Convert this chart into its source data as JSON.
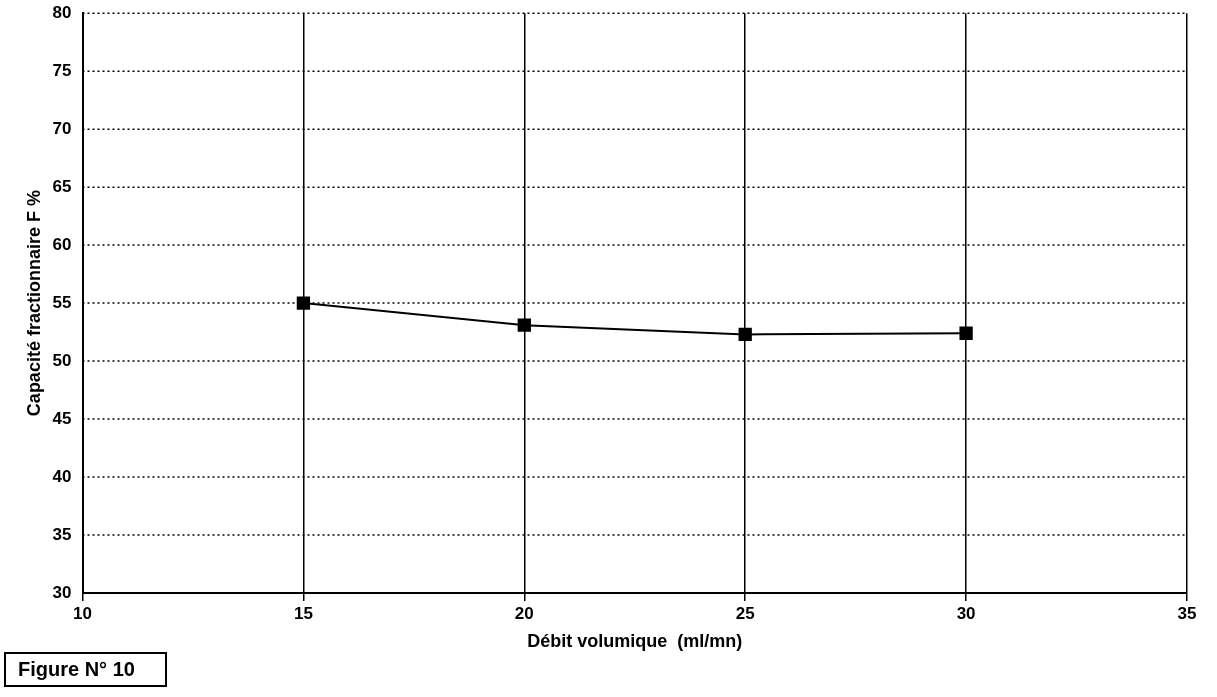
{
  "chart_data": {
    "type": "line",
    "xlabel": "Débit volumique  (ml/mn)",
    "ylabel": "Capacité fractionnaire F %",
    "x": [
      15,
      20,
      25,
      30
    ],
    "series": [
      {
        "color": "#000000",
        "values": [
          55,
          53.1,
          52.3,
          52.4
        ]
      }
    ],
    "xlim": [
      10,
      35
    ],
    "xticks": [
      10,
      15,
      20,
      25,
      30,
      35
    ],
    "ylim": [
      30,
      80
    ],
    "yticks": [
      30,
      35,
      40,
      45,
      50,
      55,
      60,
      65,
      70,
      75,
      80
    ],
    "grid": true,
    "marker": "square",
    "line_style": "solid",
    "legend": false,
    "annotations": [
      "Figure N° 10"
    ]
  }
}
